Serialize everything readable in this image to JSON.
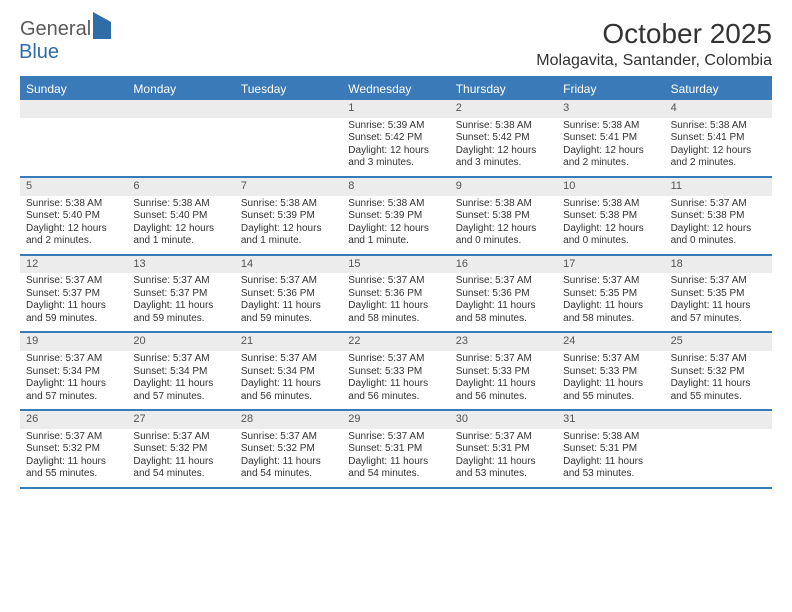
{
  "logo": {
    "part1": "General",
    "part2": "Blue"
  },
  "title": "October 2025",
  "location": "Molagavita, Santander, Colombia",
  "colors": {
    "header_bg": "#3a7ab8",
    "header_text": "#ffffff",
    "daynum_bg": "#ececec",
    "daynum_text": "#555555",
    "body_text": "#333333",
    "border": "#3a7ab8",
    "page_bg": "#ffffff"
  },
  "day_labels": [
    "Sunday",
    "Monday",
    "Tuesday",
    "Wednesday",
    "Thursday",
    "Friday",
    "Saturday"
  ],
  "weeks": [
    [
      null,
      null,
      null,
      {
        "n": "1",
        "sr": "5:39 AM",
        "ss": "5:42 PM",
        "dl": "12 hours and 3 minutes."
      },
      {
        "n": "2",
        "sr": "5:38 AM",
        "ss": "5:42 PM",
        "dl": "12 hours and 3 minutes."
      },
      {
        "n": "3",
        "sr": "5:38 AM",
        "ss": "5:41 PM",
        "dl": "12 hours and 2 minutes."
      },
      {
        "n": "4",
        "sr": "5:38 AM",
        "ss": "5:41 PM",
        "dl": "12 hours and 2 minutes."
      }
    ],
    [
      {
        "n": "5",
        "sr": "5:38 AM",
        "ss": "5:40 PM",
        "dl": "12 hours and 2 minutes."
      },
      {
        "n": "6",
        "sr": "5:38 AM",
        "ss": "5:40 PM",
        "dl": "12 hours and 1 minute."
      },
      {
        "n": "7",
        "sr": "5:38 AM",
        "ss": "5:39 PM",
        "dl": "12 hours and 1 minute."
      },
      {
        "n": "8",
        "sr": "5:38 AM",
        "ss": "5:39 PM",
        "dl": "12 hours and 1 minute."
      },
      {
        "n": "9",
        "sr": "5:38 AM",
        "ss": "5:38 PM",
        "dl": "12 hours and 0 minutes."
      },
      {
        "n": "10",
        "sr": "5:38 AM",
        "ss": "5:38 PM",
        "dl": "12 hours and 0 minutes."
      },
      {
        "n": "11",
        "sr": "5:37 AM",
        "ss": "5:38 PM",
        "dl": "12 hours and 0 minutes."
      }
    ],
    [
      {
        "n": "12",
        "sr": "5:37 AM",
        "ss": "5:37 PM",
        "dl": "11 hours and 59 minutes."
      },
      {
        "n": "13",
        "sr": "5:37 AM",
        "ss": "5:37 PM",
        "dl": "11 hours and 59 minutes."
      },
      {
        "n": "14",
        "sr": "5:37 AM",
        "ss": "5:36 PM",
        "dl": "11 hours and 59 minutes."
      },
      {
        "n": "15",
        "sr": "5:37 AM",
        "ss": "5:36 PM",
        "dl": "11 hours and 58 minutes."
      },
      {
        "n": "16",
        "sr": "5:37 AM",
        "ss": "5:36 PM",
        "dl": "11 hours and 58 minutes."
      },
      {
        "n": "17",
        "sr": "5:37 AM",
        "ss": "5:35 PM",
        "dl": "11 hours and 58 minutes."
      },
      {
        "n": "18",
        "sr": "5:37 AM",
        "ss": "5:35 PM",
        "dl": "11 hours and 57 minutes."
      }
    ],
    [
      {
        "n": "19",
        "sr": "5:37 AM",
        "ss": "5:34 PM",
        "dl": "11 hours and 57 minutes."
      },
      {
        "n": "20",
        "sr": "5:37 AM",
        "ss": "5:34 PM",
        "dl": "11 hours and 57 minutes."
      },
      {
        "n": "21",
        "sr": "5:37 AM",
        "ss": "5:34 PM",
        "dl": "11 hours and 56 minutes."
      },
      {
        "n": "22",
        "sr": "5:37 AM",
        "ss": "5:33 PM",
        "dl": "11 hours and 56 minutes."
      },
      {
        "n": "23",
        "sr": "5:37 AM",
        "ss": "5:33 PM",
        "dl": "11 hours and 56 minutes."
      },
      {
        "n": "24",
        "sr": "5:37 AM",
        "ss": "5:33 PM",
        "dl": "11 hours and 55 minutes."
      },
      {
        "n": "25",
        "sr": "5:37 AM",
        "ss": "5:32 PM",
        "dl": "11 hours and 55 minutes."
      }
    ],
    [
      {
        "n": "26",
        "sr": "5:37 AM",
        "ss": "5:32 PM",
        "dl": "11 hours and 55 minutes."
      },
      {
        "n": "27",
        "sr": "5:37 AM",
        "ss": "5:32 PM",
        "dl": "11 hours and 54 minutes."
      },
      {
        "n": "28",
        "sr": "5:37 AM",
        "ss": "5:32 PM",
        "dl": "11 hours and 54 minutes."
      },
      {
        "n": "29",
        "sr": "5:37 AM",
        "ss": "5:31 PM",
        "dl": "11 hours and 54 minutes."
      },
      {
        "n": "30",
        "sr": "5:37 AM",
        "ss": "5:31 PM",
        "dl": "11 hours and 53 minutes."
      },
      {
        "n": "31",
        "sr": "5:38 AM",
        "ss": "5:31 PM",
        "dl": "11 hours and 53 minutes."
      },
      null
    ]
  ],
  "labels": {
    "sunrise": "Sunrise: ",
    "sunset": "Sunset: ",
    "daylight": "Daylight: "
  }
}
